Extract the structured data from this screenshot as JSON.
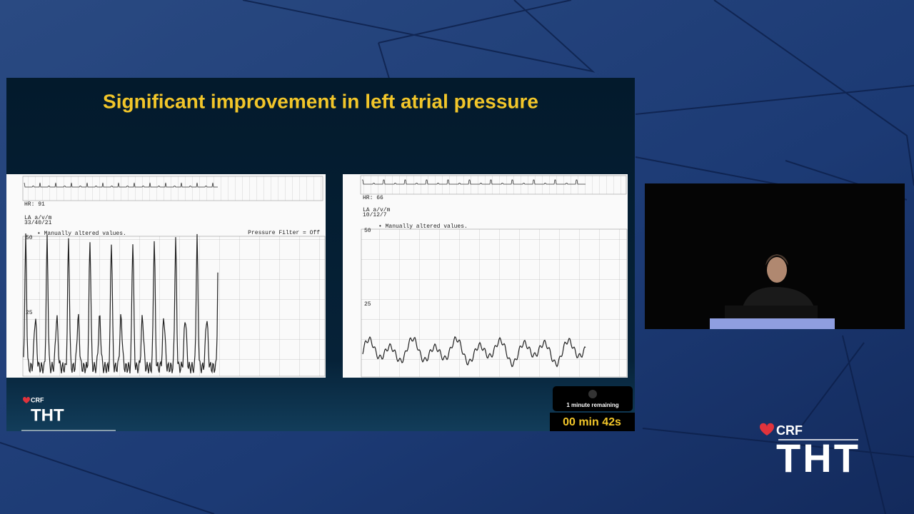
{
  "slide": {
    "title": "Significant improvement in left atrial pressure",
    "left_tracing": {
      "heart_rate": "HR: 91",
      "channel": "LA a/v/m",
      "pressures": "33/40/21",
      "note": "• Manually altered values.",
      "filter": "Pressure Filter = Off",
      "scale_top": "50",
      "scale_mid": "25"
    },
    "right_tracing": {
      "heart_rate": "HR: 66",
      "channel": "LA a/v/m",
      "pressures": "10/12/7",
      "note": "• Manually altered values.",
      "scale_top": "50",
      "scale_mid": "25"
    },
    "logo": {
      "brand": "CRF",
      "event": "THT"
    }
  },
  "timer": {
    "notice": "1 minute remaining",
    "time": "00 min 42s"
  },
  "logo": {
    "brand": "CRF",
    "event": "THT"
  }
}
